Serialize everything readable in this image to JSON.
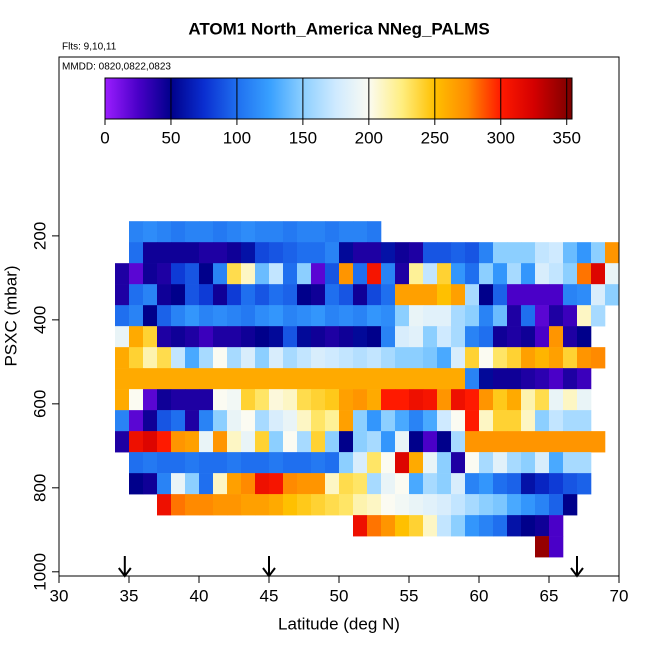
{
  "chart_data": {
    "type": "heatmap",
    "title": "ATOM1 North_America NNeg_PALMS",
    "subtitle": "Flts: 9,10,11",
    "annotation": "MMDD: 0820,0822,0823",
    "x_label": "Latitude (deg N)",
    "y_label": "PSXC (mbar)",
    "xlim": [
      30,
      70
    ],
    "xticks": [
      30,
      35,
      40,
      45,
      50,
      55,
      60,
      65,
      70
    ],
    "ylim": [
      1010,
      -226
    ],
    "yticks": [
      200,
      400,
      600,
      800,
      1000
    ],
    "x": [
      34.5,
      35.5,
      36.5,
      37.5,
      38.5,
      39.5,
      40.5,
      41.5,
      42.5,
      43.5,
      44.5,
      45.5,
      46.5,
      47.5,
      48.5,
      49.5,
      50.5,
      51.5,
      52.5,
      53.5,
      54.5,
      55.5,
      56.5,
      57.5,
      58.5,
      59.5,
      60.5,
      61.5,
      62.5,
      63.5,
      64.5,
      65.5,
      66.5,
      67.5,
      68.5,
      69.5
    ],
    "y": [
      190,
      240,
      290,
      340,
      390,
      440,
      490,
      540,
      590,
      640,
      690,
      740,
      790,
      840,
      890,
      940
    ],
    "z": [
      [
        null,
        110,
        115,
        110,
        105,
        110,
        110,
        105,
        110,
        115,
        110,
        110,
        105,
        110,
        110,
        105,
        110,
        110,
        105,
        null,
        null,
        null,
        null,
        null,
        null,
        null,
        null,
        null,
        null,
        null,
        null,
        null,
        null,
        null,
        null,
        null
      ],
      [
        null,
        100,
        45,
        45,
        45,
        45,
        40,
        40,
        45,
        60,
        85,
        90,
        95,
        100,
        100,
        110,
        55,
        40,
        40,
        60,
        45,
        40,
        90,
        90,
        95,
        90,
        110,
        150,
        150,
        150,
        170,
        175,
        140,
        120,
        150,
        270
      ],
      [
        40,
        20,
        45,
        40,
        80,
        90,
        50,
        110,
        235,
        210,
        140,
        170,
        100,
        150,
        20,
        90,
        270,
        100,
        305,
        110,
        40,
        220,
        170,
        240,
        120,
        100,
        150,
        120,
        160,
        120,
        180,
        170,
        150,
        280,
        320,
        190
      ],
      [
        40,
        100,
        110,
        45,
        50,
        90,
        80,
        45,
        80,
        100,
        90,
        100,
        95,
        50,
        45,
        100,
        90,
        45,
        85,
        100,
        265,
        265,
        265,
        250,
        265,
        160,
        50,
        95,
        25,
        25,
        25,
        25,
        110,
        115,
        180,
        150
      ],
      [
        100,
        110,
        50,
        95,
        110,
        120,
        110,
        115,
        110,
        105,
        115,
        120,
        110,
        115,
        120,
        110,
        115,
        110,
        120,
        115,
        150,
        190,
        185,
        185,
        160,
        150,
        110,
        140,
        40,
        100,
        20,
        40,
        30,
        210,
        160,
        null
      ],
      [
        190,
        260,
        240,
        40,
        45,
        40,
        30,
        40,
        40,
        45,
        50,
        55,
        90,
        55,
        45,
        40,
        45,
        55,
        50,
        110,
        180,
        185,
        150,
        175,
        160,
        110,
        100,
        45,
        40,
        45,
        25,
        270,
        40,
        50,
        null,
        null
      ],
      [
        260,
        240,
        215,
        235,
        170,
        130,
        160,
        200,
        160,
        180,
        150,
        180,
        160,
        170,
        180,
        175,
        170,
        165,
        170,
        160,
        150,
        150,
        145,
        130,
        180,
        240,
        200,
        230,
        240,
        265,
        255,
        265,
        240,
        270,
        275,
        null
      ],
      [
        260,
        260,
        260,
        260,
        260,
        260,
        260,
        260,
        260,
        260,
        260,
        260,
        260,
        260,
        260,
        260,
        260,
        260,
        260,
        260,
        260,
        260,
        260,
        260,
        260,
        110,
        55,
        45,
        45,
        40,
        35,
        25,
        40,
        30,
        null,
        null
      ],
      [
        260,
        200,
        20,
        45,
        40,
        40,
        40,
        200,
        195,
        240,
        230,
        205,
        210,
        235,
        240,
        245,
        265,
        270,
        260,
        300,
        300,
        310,
        305,
        270,
        310,
        300,
        270,
        245,
        260,
        215,
        235,
        190,
        210,
        190,
        null,
        null
      ],
      [
        110,
        20,
        45,
        90,
        100,
        40,
        110,
        150,
        190,
        200,
        160,
        180,
        190,
        210,
        230,
        220,
        265,
        150,
        120,
        150,
        130,
        110,
        130,
        175,
        200,
        300,
        210,
        240,
        240,
        210,
        150,
        170,
        160,
        160,
        null,
        null
      ],
      [
        40,
        310,
        320,
        300,
        270,
        265,
        190,
        270,
        210,
        190,
        240,
        150,
        200,
        160,
        240,
        150,
        50,
        150,
        160,
        120,
        190,
        50,
        25,
        50,
        160,
        270,
        270,
        270,
        270,
        270,
        270,
        270,
        270,
        270,
        270,
        null
      ],
      [
        null,
        100,
        105,
        100,
        100,
        105,
        100,
        100,
        105,
        100,
        100,
        105,
        100,
        100,
        105,
        100,
        150,
        180,
        230,
        200,
        320,
        260,
        190,
        150,
        40,
        200,
        160,
        185,
        160,
        150,
        180,
        130,
        160,
        160,
        null,
        null
      ],
      [
        null,
        50,
        45,
        110,
        190,
        150,
        100,
        210,
        265,
        275,
        310,
        305,
        275,
        270,
        270,
        210,
        235,
        230,
        160,
        190,
        200,
        130,
        160,
        150,
        180,
        110,
        120,
        100,
        95,
        60,
        70,
        80,
        90,
        95,
        null,
        null
      ],
      [
        null,
        null,
        null,
        310,
        280,
        275,
        275,
        270,
        270,
        265,
        265,
        260,
        250,
        245,
        240,
        235,
        230,
        215,
        210,
        200,
        195,
        190,
        185,
        180,
        170,
        160,
        150,
        145,
        130,
        120,
        110,
        95,
        50,
        null,
        null,
        null
      ],
      [
        null,
        null,
        null,
        null,
        null,
        null,
        null,
        null,
        null,
        null,
        null,
        null,
        null,
        null,
        null,
        null,
        null,
        310,
        280,
        270,
        250,
        240,
        210,
        170,
        150,
        120,
        110,
        100,
        60,
        50,
        45,
        25,
        null,
        null,
        null,
        null
      ],
      [
        null,
        null,
        null,
        null,
        null,
        null,
        null,
        null,
        null,
        null,
        null,
        null,
        null,
        null,
        null,
        null,
        null,
        null,
        null,
        null,
        null,
        null,
        null,
        null,
        null,
        null,
        null,
        null,
        null,
        null,
        345,
        25,
        null,
        null,
        null,
        null
      ]
    ],
    "zlim": [
      0,
      354
    ],
    "zticks": [
      0,
      50,
      100,
      150,
      200,
      250,
      300,
      350
    ],
    "colorscale": [
      [
        0,
        "#9b1dff"
      ],
      [
        25,
        "#4a00c8"
      ],
      [
        50,
        "#00008b"
      ],
      [
        75,
        "#0a2ed0"
      ],
      [
        100,
        "#1f6fef"
      ],
      [
        125,
        "#38a0ff"
      ],
      [
        150,
        "#8ccfff"
      ],
      [
        175,
        "#cfeaff"
      ],
      [
        200,
        "#fbfbf2"
      ],
      [
        225,
        "#ffee80"
      ],
      [
        250,
        "#ffc000"
      ],
      [
        275,
        "#ff8a00"
      ],
      [
        300,
        "#ff1a00"
      ],
      [
        325,
        "#d40000"
      ],
      [
        354,
        "#7a0000"
      ]
    ],
    "arrows_x": [
      34.7,
      45,
      67
    ]
  }
}
